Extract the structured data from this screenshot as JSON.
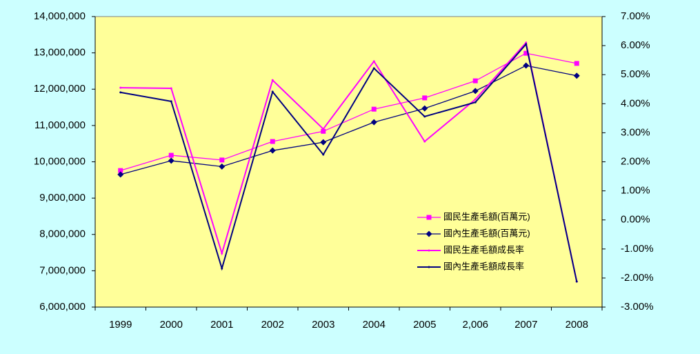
{
  "chart_data": {
    "type": "line",
    "categories": [
      "1999",
      "2000",
      "2001",
      "2002",
      "2003",
      "2004",
      "2005",
      "2,006",
      "2007",
      "2008"
    ],
    "series": [
      {
        "name": "國民生產毛額(百萬元)",
        "color": "#ff00ff",
        "marker": "square",
        "axis": "y",
        "values": [
          9760000,
          10180000,
          10050000,
          10560000,
          10840000,
          11450000,
          11760000,
          12230000,
          12990000,
          12710000
        ]
      },
      {
        "name": "國內生產毛額(百萬元)",
        "color": "#000080",
        "marker": "diamond",
        "axis": "y",
        "values": [
          9650000,
          10030000,
          9870000,
          10310000,
          10540000,
          11090000,
          11470000,
          11950000,
          12650000,
          12370000
        ]
      },
      {
        "name": "國民生產毛額成長率",
        "color": "#ff00ff",
        "marker": "point",
        "axis": "y2",
        "values": [
          4.55,
          4.53,
          -1.15,
          4.81,
          3.13,
          5.46,
          2.7,
          4.15,
          6.1,
          -2.12
        ]
      },
      {
        "name": "國內生產毛額成長率",
        "color": "#000080",
        "marker": "point",
        "axis": "y2",
        "values": [
          4.39,
          4.08,
          -1.67,
          4.41,
          2.25,
          5.22,
          3.56,
          4.05,
          6.05,
          -2.12
        ]
      }
    ],
    "ylim": [
      6000000,
      14000000
    ],
    "yticks": [
      {
        "value": 6000000,
        "label": "6,000,000"
      },
      {
        "value": 7000000,
        "label": "7,000,000"
      },
      {
        "value": 8000000,
        "label": "8,000,000"
      },
      {
        "value": 9000000,
        "label": "9,000,000"
      },
      {
        "value": 10000000,
        "label": "10,000,000"
      },
      {
        "value": 11000000,
        "label": "11,000,000"
      },
      {
        "value": 12000000,
        "label": "12,000,000"
      },
      {
        "value": 13000000,
        "label": "13,000,000"
      },
      {
        "value": 14000000,
        "label": "14,000,000"
      }
    ],
    "y2lim": [
      -3,
      7
    ],
    "y2ticks": [
      {
        "value": -3,
        "label": "-3.00%"
      },
      {
        "value": -2,
        "label": "-2.00%"
      },
      {
        "value": -1,
        "label": "-1.00%"
      },
      {
        "value": 0,
        "label": "0.00%"
      },
      {
        "value": 1,
        "label": "1.00%"
      },
      {
        "value": 2,
        "label": "2.00%"
      },
      {
        "value": 3,
        "label": "3.00%"
      },
      {
        "value": 4,
        "label": "4.00%"
      },
      {
        "value": 5,
        "label": "5.00%"
      },
      {
        "value": 6,
        "label": "6.00%"
      },
      {
        "value": 7,
        "label": "7.00%"
      }
    ],
    "grid": false,
    "legend": "lower-right"
  }
}
